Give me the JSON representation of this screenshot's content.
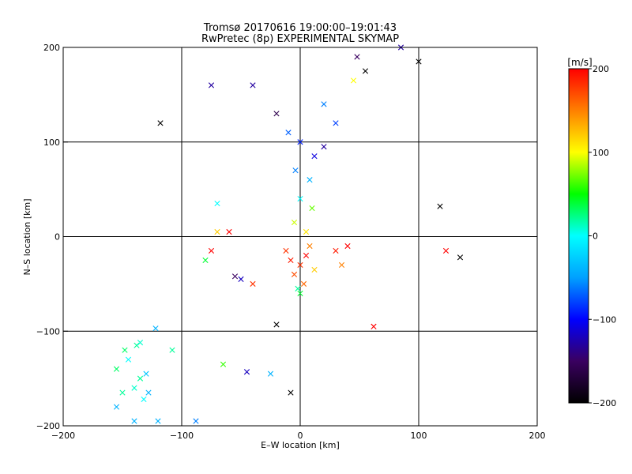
{
  "chart_data": {
    "type": "scatter",
    "title": "Tromsø 20170616 19:00:00–19:01:43",
    "subtitle": "RwPretec (8p) EXPERIMENTAL SKYMAP",
    "xlabel": "E–W location [km]",
    "ylabel": "N–S location [km]",
    "xlim": [
      -200,
      200
    ],
    "ylim": [
      -200,
      200
    ],
    "x_ticks": [
      -200,
      -100,
      0,
      100,
      200
    ],
    "y_ticks": [
      -200,
      -100,
      0,
      100,
      200
    ],
    "x_tick_labels": [
      "−200",
      "−100",
      "0",
      "100",
      "200"
    ],
    "y_tick_labels": [
      "−200",
      "−100",
      "0",
      "100",
      "200"
    ],
    "grid": true,
    "marker_symbols": [
      "x",
      "."
    ],
    "colorbar": {
      "label": "[m/s]",
      "range": [
        -200,
        200
      ],
      "ticks": [
        200,
        100,
        0,
        -100,
        -200
      ],
      "tick_labels": [
        "200",
        "100",
        "0",
        "−100",
        "−200"
      ],
      "colormap": [
        "#000000",
        "#3a0060",
        "#0000ff",
        "#00a0ff",
        "#00ffff",
        "#00ff00",
        "#ffff00",
        "#ff8000",
        "#ff0000"
      ]
    },
    "points": [
      {
        "x": 0,
        "y": -30,
        "v": 180,
        "m": "x"
      },
      {
        "x": 5,
        "y": -20,
        "v": 200,
        "m": "x"
      },
      {
        "x": -5,
        "y": -40,
        "v": 170,
        "m": "x"
      },
      {
        "x": 8,
        "y": -10,
        "v": 150,
        "m": "x"
      },
      {
        "x": -8,
        "y": -25,
        "v": 190,
        "m": "x"
      },
      {
        "x": 3,
        "y": -50,
        "v": 160,
        "m": "x"
      },
      {
        "x": 12,
        "y": -35,
        "v": 120,
        "m": "x"
      },
      {
        "x": -12,
        "y": -15,
        "v": 180,
        "m": "x"
      },
      {
        "x": 0,
        "y": -60,
        "v": 40,
        "m": "x"
      },
      {
        "x": -2,
        "y": -55,
        "v": 20,
        "m": "x"
      },
      {
        "x": 5,
        "y": 5,
        "v": 110,
        "m": "x"
      },
      {
        "x": -5,
        "y": 15,
        "v": 90,
        "m": "x"
      },
      {
        "x": 10,
        "y": 30,
        "v": 70,
        "m": "x"
      },
      {
        "x": 0,
        "y": 40,
        "v": 0,
        "m": "x"
      },
      {
        "x": 8,
        "y": 60,
        "v": -40,
        "m": "x"
      },
      {
        "x": -4,
        "y": 70,
        "v": -60,
        "m": "x"
      },
      {
        "x": 12,
        "y": 85,
        "v": -110,
        "m": "x"
      },
      {
        "x": 20,
        "y": 95,
        "v": -130,
        "m": "x"
      },
      {
        "x": 0,
        "y": 100,
        "v": -90,
        "m": "x"
      },
      {
        "x": -10,
        "y": 110,
        "v": -70,
        "m": "x"
      },
      {
        "x": 30,
        "y": 120,
        "v": -80,
        "m": "x"
      },
      {
        "x": 20,
        "y": 140,
        "v": -60,
        "m": "x"
      },
      {
        "x": -20,
        "y": 130,
        "v": -160,
        "m": "x"
      },
      {
        "x": 45,
        "y": 165,
        "v": 100,
        "m": "x"
      },
      {
        "x": 48,
        "y": 190,
        "v": -150,
        "m": "x"
      },
      {
        "x": 55,
        "y": 175,
        "v": -200,
        "m": "x"
      },
      {
        "x": 100,
        "y": 185,
        "v": -200,
        "m": "x"
      },
      {
        "x": 85,
        "y": 200,
        "v": -130,
        "m": "x"
      },
      {
        "x": -118,
        "y": 120,
        "v": -200,
        "m": "x"
      },
      {
        "x": -40,
        "y": 160,
        "v": -130,
        "m": "x"
      },
      {
        "x": -75,
        "y": 160,
        "v": -130,
        "m": "x"
      },
      {
        "x": -70,
        "y": 35,
        "v": 0,
        "m": "x"
      },
      {
        "x": -60,
        "y": 5,
        "v": 200,
        "m": "x"
      },
      {
        "x": -70,
        "y": 5,
        "v": 120,
        "m": "x"
      },
      {
        "x": -75,
        "y": -15,
        "v": 200,
        "m": "x"
      },
      {
        "x": -80,
        "y": -25,
        "v": 40,
        "m": "x"
      },
      {
        "x": -55,
        "y": -42,
        "v": -150,
        "m": "x"
      },
      {
        "x": -50,
        "y": -45,
        "v": -120,
        "m": "x"
      },
      {
        "x": -40,
        "y": -50,
        "v": 180,
        "m": "x"
      },
      {
        "x": 30,
        "y": -15,
        "v": 190,
        "m": "x"
      },
      {
        "x": 35,
        "y": -30,
        "v": 150,
        "m": "x"
      },
      {
        "x": 40,
        "y": -10,
        "v": 200,
        "m": "x"
      },
      {
        "x": 123,
        "y": -15,
        "v": 200,
        "m": "x"
      },
      {
        "x": 135,
        "y": -22,
        "v": -200,
        "m": "x"
      },
      {
        "x": 118,
        "y": 32,
        "v": -200,
        "m": "x"
      },
      {
        "x": 62,
        "y": -95,
        "v": 200,
        "m": "x"
      },
      {
        "x": -20,
        "y": -93,
        "v": -200,
        "m": "x"
      },
      {
        "x": -8,
        "y": -165,
        "v": -200,
        "m": "x"
      },
      {
        "x": -45,
        "y": -143,
        "v": -120,
        "m": "x"
      },
      {
        "x": -25,
        "y": -145,
        "v": -40,
        "m": "x"
      },
      {
        "x": -65,
        "y": -135,
        "v": 60,
        "m": "x"
      },
      {
        "x": -88,
        "y": -195,
        "v": -60,
        "m": "x"
      },
      {
        "x": -108,
        "y": -120,
        "v": 20,
        "m": "x"
      },
      {
        "x": -122,
        "y": -97,
        "v": -40,
        "m": "x"
      },
      {
        "x": -138,
        "y": -115,
        "v": 20,
        "m": "x"
      },
      {
        "x": -145,
        "y": -130,
        "v": 0,
        "m": "x"
      },
      {
        "x": -130,
        "y": -145,
        "v": -30,
        "m": "x"
      },
      {
        "x": -140,
        "y": -160,
        "v": 10,
        "m": "x"
      },
      {
        "x": -128,
        "y": -165,
        "v": -40,
        "m": "x"
      },
      {
        "x": -150,
        "y": -165,
        "v": 20,
        "m": "x"
      },
      {
        "x": -155,
        "y": -140,
        "v": 30,
        "m": "x"
      },
      {
        "x": -135,
        "y": -150,
        "v": 20,
        "m": "x"
      },
      {
        "x": -132,
        "y": -172,
        "v": 0,
        "m": "x"
      },
      {
        "x": -155,
        "y": -180,
        "v": -40,
        "m": "x"
      },
      {
        "x": -140,
        "y": -195,
        "v": -40,
        "m": "x"
      },
      {
        "x": -120,
        "y": -195,
        "v": -40,
        "m": "x"
      },
      {
        "x": -148,
        "y": -120,
        "v": 30,
        "m": "x"
      },
      {
        "x": -135,
        "y": -112,
        "v": 10,
        "m": "x"
      }
    ]
  }
}
